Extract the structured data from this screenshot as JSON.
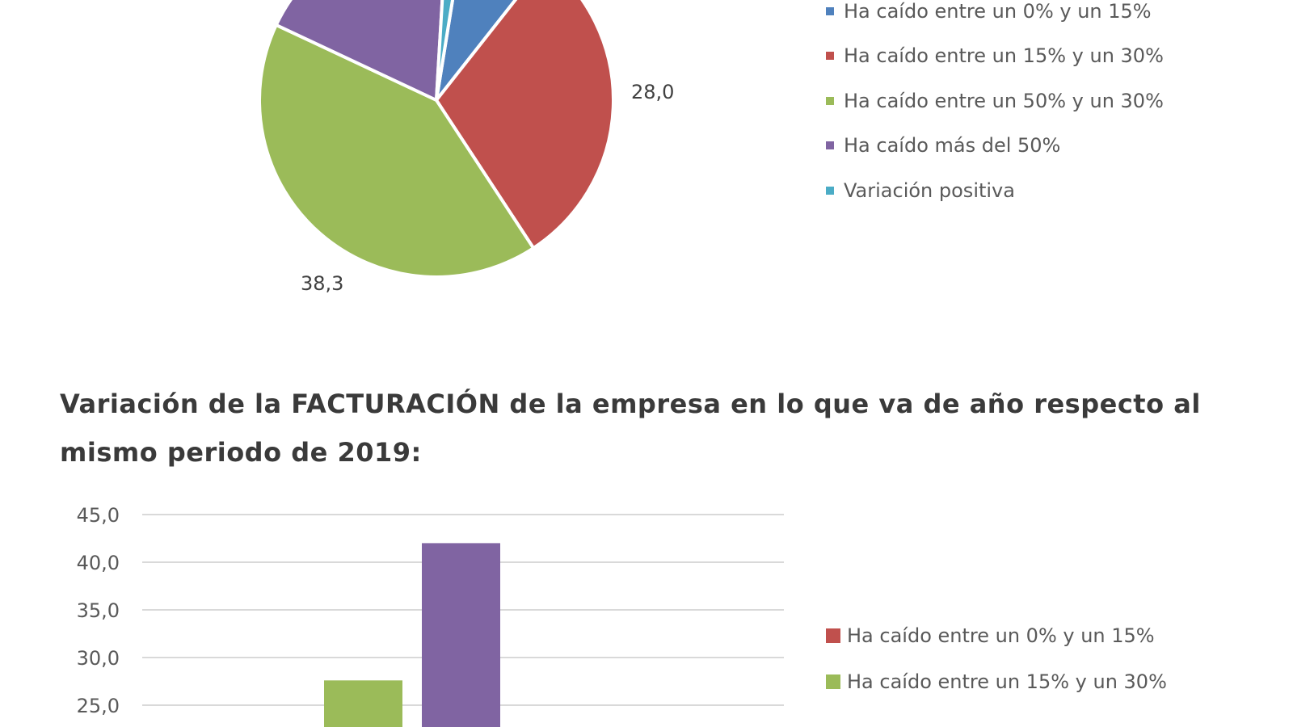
{
  "section_title": "Variación de la FACTURACIÓN de la empresa en lo que va de año respecto al mismo periodo de 2019:",
  "chart_data": [
    {
      "type": "pie",
      "title": "",
      "legend_position": "right",
      "slices": [
        {
          "label": "Ha caído entre un 0% y un 15%",
          "value": 7.5,
          "color": "#4f81bd",
          "data_label": ""
        },
        {
          "label": "Ha caído entre un 15% y un 30%",
          "value": 28.0,
          "color": "#c0504d",
          "data_label": "28,0"
        },
        {
          "label": "Ha caído entre un 50% y un 30%",
          "value": 38.3,
          "color": "#9bbb59",
          "data_label": "38,3"
        },
        {
          "label": "Ha caído más del 50%",
          "value": 17.6,
          "color": "#8064a2",
          "data_label": ""
        },
        {
          "label": "Variación positiva",
          "value": 1.5,
          "color": "#4bacc6",
          "data_label": ""
        }
      ]
    },
    {
      "type": "bar",
      "title": "",
      "legend_position": "right",
      "ylim": [
        0,
        45
      ],
      "yticks": [
        "25,0",
        "30,0",
        "35,0",
        "40,0",
        "45,0"
      ],
      "ytick_values": [
        25,
        30,
        35,
        40,
        45
      ],
      "grid": true,
      "series": [
        {
          "name": "Ha caído entre un 0% y un 15%",
          "value": null,
          "color": "#c0504d"
        },
        {
          "name": "Ha caído entre un 15% y un 30%",
          "value": 27.6,
          "color": "#9bbb59"
        },
        {
          "name": "",
          "value": 42.0,
          "color": "#8064a2"
        }
      ]
    }
  ]
}
